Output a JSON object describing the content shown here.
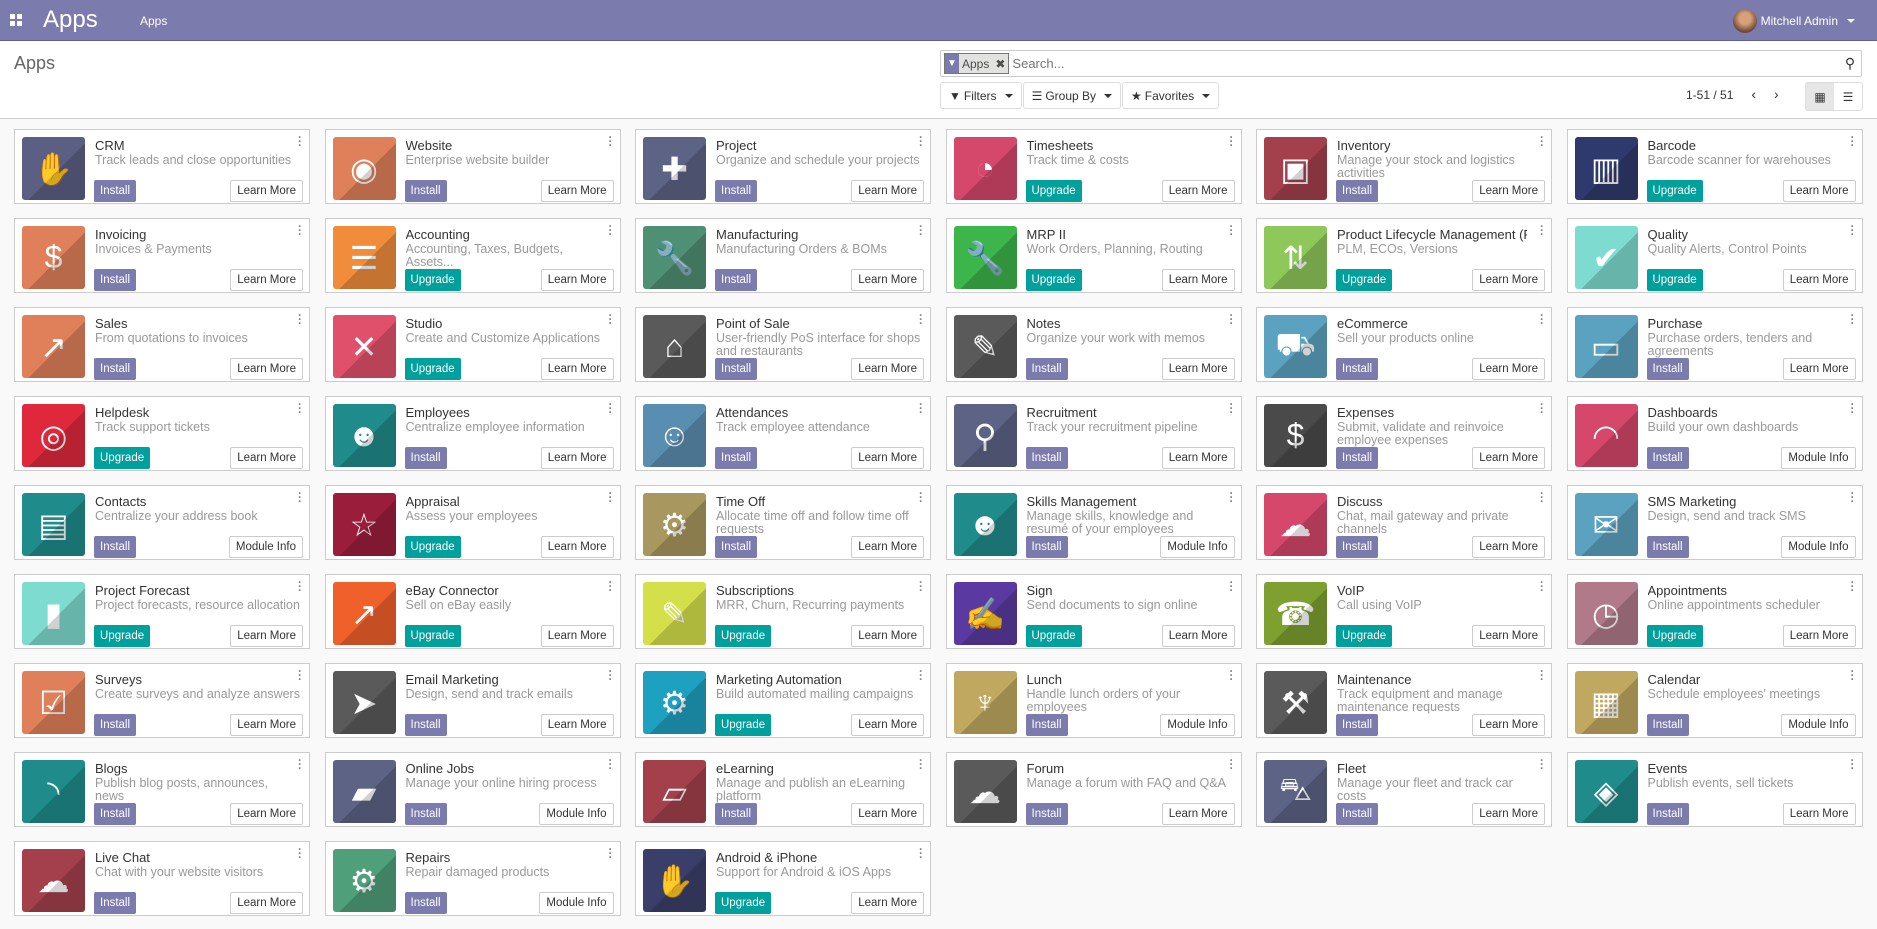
{
  "colors": {
    "navbar": "#7c7bad",
    "install": "#7c7bad",
    "upgrade": "#00a09d"
  },
  "navbar": {
    "brand": "Apps",
    "menu": "Apps",
    "user": "Mitchell Admin"
  },
  "control_panel": {
    "title": "Apps",
    "facet": "Apps",
    "search_placeholder": "Search...",
    "filters": "Filters",
    "group_by": "Group By",
    "favorites": "Favorites",
    "pager": "1-51 / 51"
  },
  "apps": [
    {
      "name": "CRM",
      "desc": "Track leads and close opportunities",
      "action": "Install",
      "info": "Learn More",
      "color": "#5b5f83",
      "icon": "handshake-icon",
      "glyph": "✋"
    },
    {
      "name": "Website",
      "desc": "Enterprise website builder",
      "action": "Install",
      "info": "Learn More",
      "color": "#e0805a",
      "icon": "globe-icon",
      "glyph": "◉"
    },
    {
      "name": "Project",
      "desc": "Organize and schedule your projects",
      "action": "Install",
      "info": "Learn More",
      "color": "#5c6385",
      "icon": "puzzle-icon",
      "glyph": "✚"
    },
    {
      "name": "Timesheets",
      "desc": "Track time & costs",
      "action": "Upgrade",
      "info": "Learn More",
      "color": "#d5476b",
      "icon": "clock-icon",
      "glyph": "◔"
    },
    {
      "name": "Inventory",
      "desc": "Manage your stock and logistics activities",
      "action": "Install",
      "info": "Learn More",
      "color": "#a3404b",
      "icon": "box-icon",
      "glyph": "▣"
    },
    {
      "name": "Barcode",
      "desc": "Barcode scanner for warehouses",
      "action": "Upgrade",
      "info": "Learn More",
      "color": "#2e3a6d",
      "icon": "barcode-icon",
      "glyph": "▥"
    },
    {
      "name": "Invoicing",
      "desc": "Invoices & Payments",
      "action": "Install",
      "info": "Learn More",
      "color": "#e0805a",
      "icon": "invoice-icon",
      "glyph": "$"
    },
    {
      "name": "Accounting",
      "desc": "Accounting, Taxes, Budgets, Assets...",
      "action": "Upgrade",
      "info": "Learn More",
      "color": "#f08c3a",
      "icon": "document-icon",
      "glyph": "☰"
    },
    {
      "name": "Manufacturing",
      "desc": "Manufacturing Orders & BOMs",
      "action": "Install",
      "info": "Learn More",
      "color": "#4f8f73",
      "icon": "wrench-icon",
      "glyph": "🔧"
    },
    {
      "name": "MRP II",
      "desc": "Work Orders, Planning, Routing",
      "action": "Upgrade",
      "info": "Learn More",
      "color": "#3cb54a",
      "icon": "wrench-icon",
      "glyph": "🔧"
    },
    {
      "name": "Product Lifecycle Management (P...",
      "desc": "PLM, ECOs, Versions",
      "action": "Upgrade",
      "info": "Learn More",
      "color": "#8ec75a",
      "icon": "package-icon",
      "glyph": "⇅"
    },
    {
      "name": "Quality",
      "desc": "Quality Alerts, Control Points",
      "action": "Upgrade",
      "info": "Learn More",
      "color": "#7ddbd0",
      "icon": "clipboard-check-icon",
      "glyph": "✔"
    },
    {
      "name": "Sales",
      "desc": "From quotations to invoices",
      "action": "Install",
      "info": "Learn More",
      "color": "#e0805a",
      "icon": "chart-line-icon",
      "glyph": "↗"
    },
    {
      "name": "Studio",
      "desc": "Create and Customize Applications",
      "action": "Upgrade",
      "info": "Learn More",
      "color": "#e0506a",
      "icon": "tools-icon",
      "glyph": "✕"
    },
    {
      "name": "Point of Sale",
      "desc": "User-friendly PoS interface for shops and restaurants",
      "action": "Install",
      "info": "Learn More",
      "color": "#5a5a5a",
      "icon": "shop-icon",
      "glyph": "⌂"
    },
    {
      "name": "Notes",
      "desc": "Organize your work with memos",
      "action": "Install",
      "info": "Learn More",
      "color": "#5a5a5a",
      "icon": "note-icon",
      "glyph": "✎"
    },
    {
      "name": "eCommerce",
      "desc": "Sell your products online",
      "action": "Install",
      "info": "Learn More",
      "color": "#5aa2c0",
      "icon": "cart-icon",
      "glyph": "⛟"
    },
    {
      "name": "Purchase",
      "desc": "Purchase orders, tenders and agreements",
      "action": "Install",
      "info": "Learn More",
      "color": "#5aa2c0",
      "icon": "credit-card-icon",
      "glyph": "▭"
    },
    {
      "name": "Helpdesk",
      "desc": "Track support tickets",
      "action": "Upgrade",
      "info": "Learn More",
      "color": "#e0283c",
      "icon": "lifebuoy-icon",
      "glyph": "◎"
    },
    {
      "name": "Employees",
      "desc": "Centralize employee information",
      "action": "Install",
      "info": "Learn More",
      "color": "#1f8b8b",
      "icon": "users-icon",
      "glyph": "☻"
    },
    {
      "name": "Attendances",
      "desc": "Track employee attendance",
      "action": "Install",
      "info": "Learn More",
      "color": "#5a8eb0",
      "icon": "user-clock-icon",
      "glyph": "☺"
    },
    {
      "name": "Recruitment",
      "desc": "Track your recruitment pipeline",
      "action": "Install",
      "info": "Learn More",
      "color": "#5c6385",
      "icon": "magnifier-icon",
      "glyph": "⚲"
    },
    {
      "name": "Expenses",
      "desc": "Submit, validate and reinvoice employee expenses",
      "action": "Install",
      "info": "Learn More",
      "color": "#4a4a4a",
      "icon": "user-dollar-icon",
      "glyph": "$"
    },
    {
      "name": "Dashboards",
      "desc": "Build your own dashboards",
      "action": "Install",
      "info": "Module Info",
      "color": "#d5476b",
      "icon": "gauge-icon",
      "glyph": "◠"
    },
    {
      "name": "Contacts",
      "desc": "Centralize your address book",
      "action": "Install",
      "info": "Module Info",
      "color": "#1f8b8b",
      "icon": "address-book-icon",
      "glyph": "▤"
    },
    {
      "name": "Appraisal",
      "desc": "Assess your employees",
      "action": "Upgrade",
      "info": "Learn More",
      "color": "#9b1d3c",
      "icon": "star-icon",
      "glyph": "☆"
    },
    {
      "name": "Time Off",
      "desc": "Allocate time off and follow time off requests",
      "action": "Install",
      "info": "Learn More",
      "color": "#a8975e",
      "icon": "user-gear-icon",
      "glyph": "⚙"
    },
    {
      "name": "Skills Management",
      "desc": "Manage skills, knowledge and resumé of your employees",
      "action": "Install",
      "info": "Module Info",
      "color": "#1f8b8b",
      "icon": "users-icon",
      "glyph": "☻"
    },
    {
      "name": "Discuss",
      "desc": "Chat, mail gateway and private channels",
      "action": "Install",
      "info": "Learn More",
      "color": "#d5476b",
      "icon": "chat-icon",
      "glyph": "☁"
    },
    {
      "name": "SMS Marketing",
      "desc": "Design, send and track SMS",
      "action": "Install",
      "info": "Module Info",
      "color": "#5aa2c0",
      "icon": "sms-icon",
      "glyph": "✉"
    },
    {
      "name": "Project Forecast",
      "desc": "Project forecasts, resource allocation",
      "action": "Upgrade",
      "info": "Learn More",
      "color": "#7ddbd0",
      "icon": "bar-chart-icon",
      "glyph": "▮"
    },
    {
      "name": "eBay Connector",
      "desc": "Sell on eBay easily",
      "action": "Upgrade",
      "info": "Learn More",
      "color": "#f0602a",
      "icon": "chart-line-icon",
      "glyph": "↗"
    },
    {
      "name": "Subscriptions",
      "desc": "MRR, Churn, Recurring payments",
      "action": "Upgrade",
      "info": "Learn More",
      "color": "#d4e04a",
      "icon": "rss-pen-icon",
      "glyph": "✎"
    },
    {
      "name": "Sign",
      "desc": "Send documents to sign online",
      "action": "Upgrade",
      "info": "Learn More",
      "color": "#5a3aa0",
      "icon": "sign-document-icon",
      "glyph": "✍"
    },
    {
      "name": "VoIP",
      "desc": "Call using VoIP",
      "action": "Upgrade",
      "info": "Learn More",
      "color": "#7ea030",
      "icon": "phone-icon",
      "glyph": "☎"
    },
    {
      "name": "Appointments",
      "desc": "Online appointments scheduler",
      "action": "Upgrade",
      "info": "Learn More",
      "color": "#b07a8a",
      "icon": "calendar-clock-icon",
      "glyph": "◷"
    },
    {
      "name": "Surveys",
      "desc": "Create surveys and analyze answers",
      "action": "Install",
      "info": "Learn More",
      "color": "#e0805a",
      "icon": "survey-icon",
      "glyph": "☑"
    },
    {
      "name": "Email Marketing",
      "desc": "Design, send and track emails",
      "action": "Install",
      "info": "Learn More",
      "color": "#5a5a5a",
      "icon": "paper-plane-icon",
      "glyph": "➤"
    },
    {
      "name": "Marketing Automation",
      "desc": "Build automated mailing campaigns",
      "action": "Upgrade",
      "info": "Learn More",
      "color": "#1ea0c0",
      "icon": "gear-mail-icon",
      "glyph": "⚙"
    },
    {
      "name": "Lunch",
      "desc": "Handle lunch orders of your employees",
      "action": "Install",
      "info": "Module Info",
      "color": "#c0a860",
      "icon": "cutlery-icon",
      "glyph": "♆"
    },
    {
      "name": "Maintenance",
      "desc": "Track equipment and manage maintenance requests",
      "action": "Install",
      "info": "Learn More",
      "color": "#5a5a5a",
      "icon": "hammer-icon",
      "glyph": "⚒"
    },
    {
      "name": "Calendar",
      "desc": "Schedule employees' meetings",
      "action": "Install",
      "info": "Module Info",
      "color": "#c0a860",
      "icon": "calendar-icon",
      "glyph": "▦"
    },
    {
      "name": "Blogs",
      "desc": "Publish blog posts, announces, news",
      "action": "Install",
      "info": "Learn More",
      "color": "#1f8b8b",
      "icon": "rss-icon",
      "glyph": "◝"
    },
    {
      "name": "Online Jobs",
      "desc": "Manage your online hiring process",
      "action": "Install",
      "info": "Module Info",
      "color": "#5c6385",
      "icon": "briefcase-icon",
      "glyph": "▰"
    },
    {
      "name": "eLearning",
      "desc": "Manage and publish an eLearning platform",
      "action": "Install",
      "info": "Learn More",
      "color": "#a3404b",
      "icon": "presentation-icon",
      "glyph": "▱"
    },
    {
      "name": "Forum",
      "desc": "Manage a forum with FAQ and Q&A",
      "action": "Install",
      "info": "Learn More",
      "color": "#5a5a5a",
      "icon": "chat-user-icon",
      "glyph": "☁"
    },
    {
      "name": "Fleet",
      "desc": "Manage your fleet and track car costs",
      "action": "Install",
      "info": "Learn More",
      "color": "#5c6385",
      "icon": "car-icon",
      "glyph": "⛍"
    },
    {
      "name": "Events",
      "desc": "Publish events, sell tickets",
      "action": "Install",
      "info": "Learn More",
      "color": "#1f8b8b",
      "icon": "ticket-icon",
      "glyph": "◈"
    },
    {
      "name": "Live Chat",
      "desc": "Chat with your website visitors",
      "action": "Install",
      "info": "Learn More",
      "color": "#a3404b",
      "icon": "comments-icon",
      "glyph": "☁"
    },
    {
      "name": "Repairs",
      "desc": "Repair damaged products",
      "action": "Install",
      "info": "Module Info",
      "color": "#4f9f7a",
      "icon": "repair-tools-icon",
      "glyph": "⚙"
    },
    {
      "name": "Android & iPhone",
      "desc": "Support for Android & iOS Apps",
      "action": "Upgrade",
      "info": "Learn More",
      "color": "#3a3f6a",
      "icon": "handshake-icon",
      "glyph": "✋"
    }
  ]
}
